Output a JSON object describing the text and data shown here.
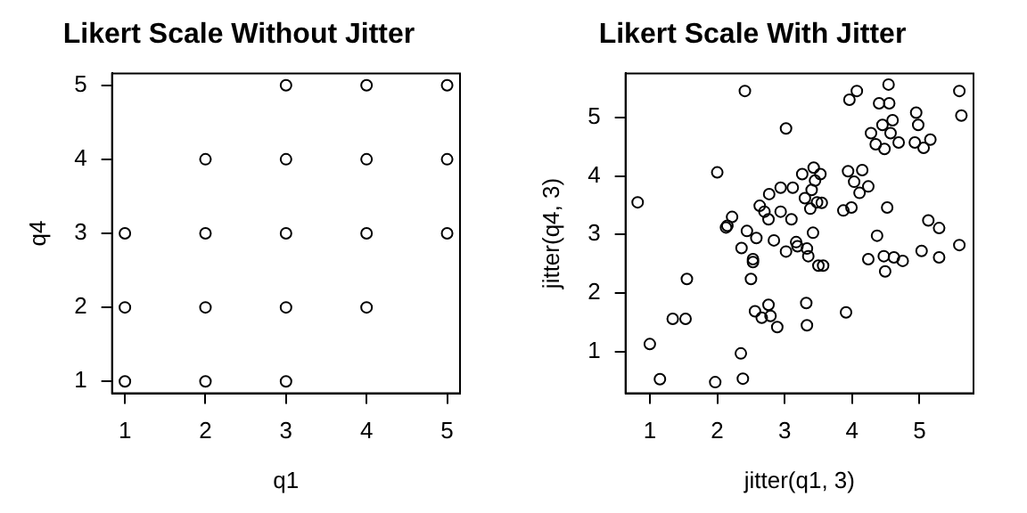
{
  "chart_data": [
    {
      "type": "scatter",
      "title": "Likert Scale Without Jitter",
      "xlabel": "q1",
      "ylabel": "q4",
      "xlim": [
        0.84,
        5.16
      ],
      "ylim": [
        0.84,
        5.16
      ],
      "xticks": [
        1,
        2,
        3,
        4,
        5
      ],
      "yticks": [
        1,
        2,
        3,
        4,
        5
      ],
      "grid": false,
      "legend": false,
      "marker": "circle",
      "series": [
        {
          "color": "#000000",
          "x": [
            1,
            2,
            3,
            1,
            2,
            3,
            4,
            1,
            2,
            3,
            4,
            5,
            2,
            3,
            4,
            5,
            3,
            4,
            5
          ],
          "values": [
            1,
            1,
            1,
            2,
            2,
            2,
            2,
            3,
            3,
            3,
            3,
            3,
            4,
            4,
            4,
            4,
            5,
            5,
            5
          ]
        }
      ]
    },
    {
      "type": "scatter",
      "title": "Likert Scale With Jitter",
      "xlabel": "jitter(q1, 3)",
      "ylabel": "jitter(q4, 3)",
      "xlim": [
        0.64,
        5.8
      ],
      "ylim": [
        0.29,
        5.75
      ],
      "xticks": [
        1,
        2,
        3,
        4,
        5
      ],
      "yticks": [
        1,
        2,
        3,
        4,
        5
      ],
      "grid": false,
      "legend": false,
      "marker": "circle",
      "series": [
        {
          "color": "#000000",
          "x": [
            0.82,
            1.0,
            1.15,
            1.34,
            1.53,
            1.55,
            1.97,
            2.0,
            2.13,
            2.15,
            2.22,
            2.35,
            2.38,
            2.41,
            2.36,
            2.44,
            2.5,
            2.53,
            2.53,
            2.58,
            2.56,
            2.63,
            2.66,
            2.7,
            2.76,
            2.77,
            2.76,
            2.79,
            2.84,
            2.89,
            2.94,
            2.94,
            3.02,
            3.02,
            3.1,
            3.12,
            3.17,
            3.19,
            3.26,
            3.3,
            3.32,
            3.33,
            3.33,
            3.35,
            3.38,
            3.4,
            3.42,
            3.43,
            3.45,
            3.48,
            3.5,
            3.53,
            3.55,
            3.57,
            3.87,
            3.91,
            3.94,
            3.96,
            3.99,
            4.03,
            4.07,
            4.11,
            4.15,
            4.24,
            4.24,
            4.28,
            4.35,
            4.37,
            4.4,
            4.45,
            4.48,
            4.47,
            4.49,
            4.52,
            4.54,
            4.55,
            4.57,
            4.6,
            4.62,
            4.69,
            4.75,
            4.93,
            4.95,
            4.98,
            5.03,
            5.06,
            5.13,
            5.16,
            5.29,
            5.29,
            5.59,
            5.59,
            5.62
          ],
          "values": [
            3.55,
            1.13,
            0.53,
            1.56,
            1.56,
            2.24,
            0.48,
            4.06,
            3.12,
            3.15,
            3.3,
            0.97,
            0.54,
            5.45,
            2.77,
            3.06,
            2.24,
            2.53,
            2.58,
            2.94,
            1.69,
            3.49,
            1.58,
            3.39,
            3.26,
            3.69,
            1.8,
            1.61,
            2.9,
            1.42,
            3.39,
            3.8,
            4.81,
            2.71,
            3.26,
            3.8,
            2.87,
            2.8,
            4.03,
            3.62,
            1.83,
            1.45,
            2.76,
            2.63,
            3.44,
            3.76,
            3.03,
            4.14,
            3.92,
            3.55,
            2.47,
            4.03,
            3.54,
            2.47,
            3.41,
            1.67,
            4.08,
            5.3,
            3.46,
            3.9,
            5.45,
            3.71,
            4.1,
            3.82,
            2.58,
            4.73,
            4.54,
            2.98,
            5.24,
            4.87,
            4.46,
            2.63,
            2.37,
            3.46,
            5.56,
            5.24,
            4.73,
            4.95,
            2.61,
            4.57,
            2.55,
            4.57,
            5.08,
            4.87,
            2.72,
            4.48,
            3.24,
            4.62,
            3.11,
            2.61,
            5.45,
            2.82,
            5.03
          ]
        }
      ]
    }
  ]
}
